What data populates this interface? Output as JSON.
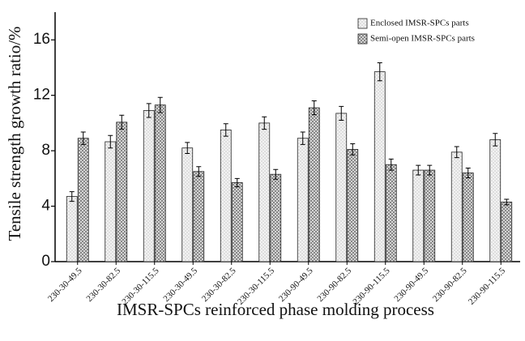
{
  "chart_data": {
    "type": "bar",
    "y_label": "Tensile strength growth ratio/%",
    "x_label": "IMSR-SPCs reinforced phase molding process",
    "categories": [
      "230-30-49.5",
      "230-30-82.5",
      "230-30-115.5",
      "230-30-49.5",
      "230-30-82.5",
      "230-30-115.5",
      "230-90-49.5",
      "230-90-82.5",
      "230-90-115.5",
      "230-90-49.5",
      "230-90-82.5",
      "230-90-115.5"
    ],
    "series": [
      {
        "name": "Enclosed IMSR-SPCs parts",
        "color": "#f2f2f2",
        "values": [
          4.7,
          8.65,
          10.9,
          8.2,
          9.5,
          10.0,
          8.9,
          10.7,
          13.7,
          6.6,
          7.9,
          8.8
        ],
        "errors": [
          0.35,
          0.45,
          0.5,
          0.4,
          0.45,
          0.45,
          0.45,
          0.5,
          0.65,
          0.35,
          0.4,
          0.45
        ]
      },
      {
        "name": "Semi-open IMSR-SPCs parts",
        "color": "#e0e0e0",
        "values": [
          8.9,
          10.06,
          11.3,
          6.5,
          5.7,
          6.3,
          11.1,
          8.1,
          7.0,
          6.6,
          6.4,
          4.3
        ],
        "errors": [
          0.45,
          0.5,
          0.55,
          0.35,
          0.3,
          0.35,
          0.5,
          0.4,
          0.4,
          0.35,
          0.35,
          0.2
        ]
      }
    ],
    "ylim": [
      0,
      18
    ],
    "yticks": [
      0,
      4,
      8,
      12,
      16
    ],
    "legend": "top-right"
  }
}
